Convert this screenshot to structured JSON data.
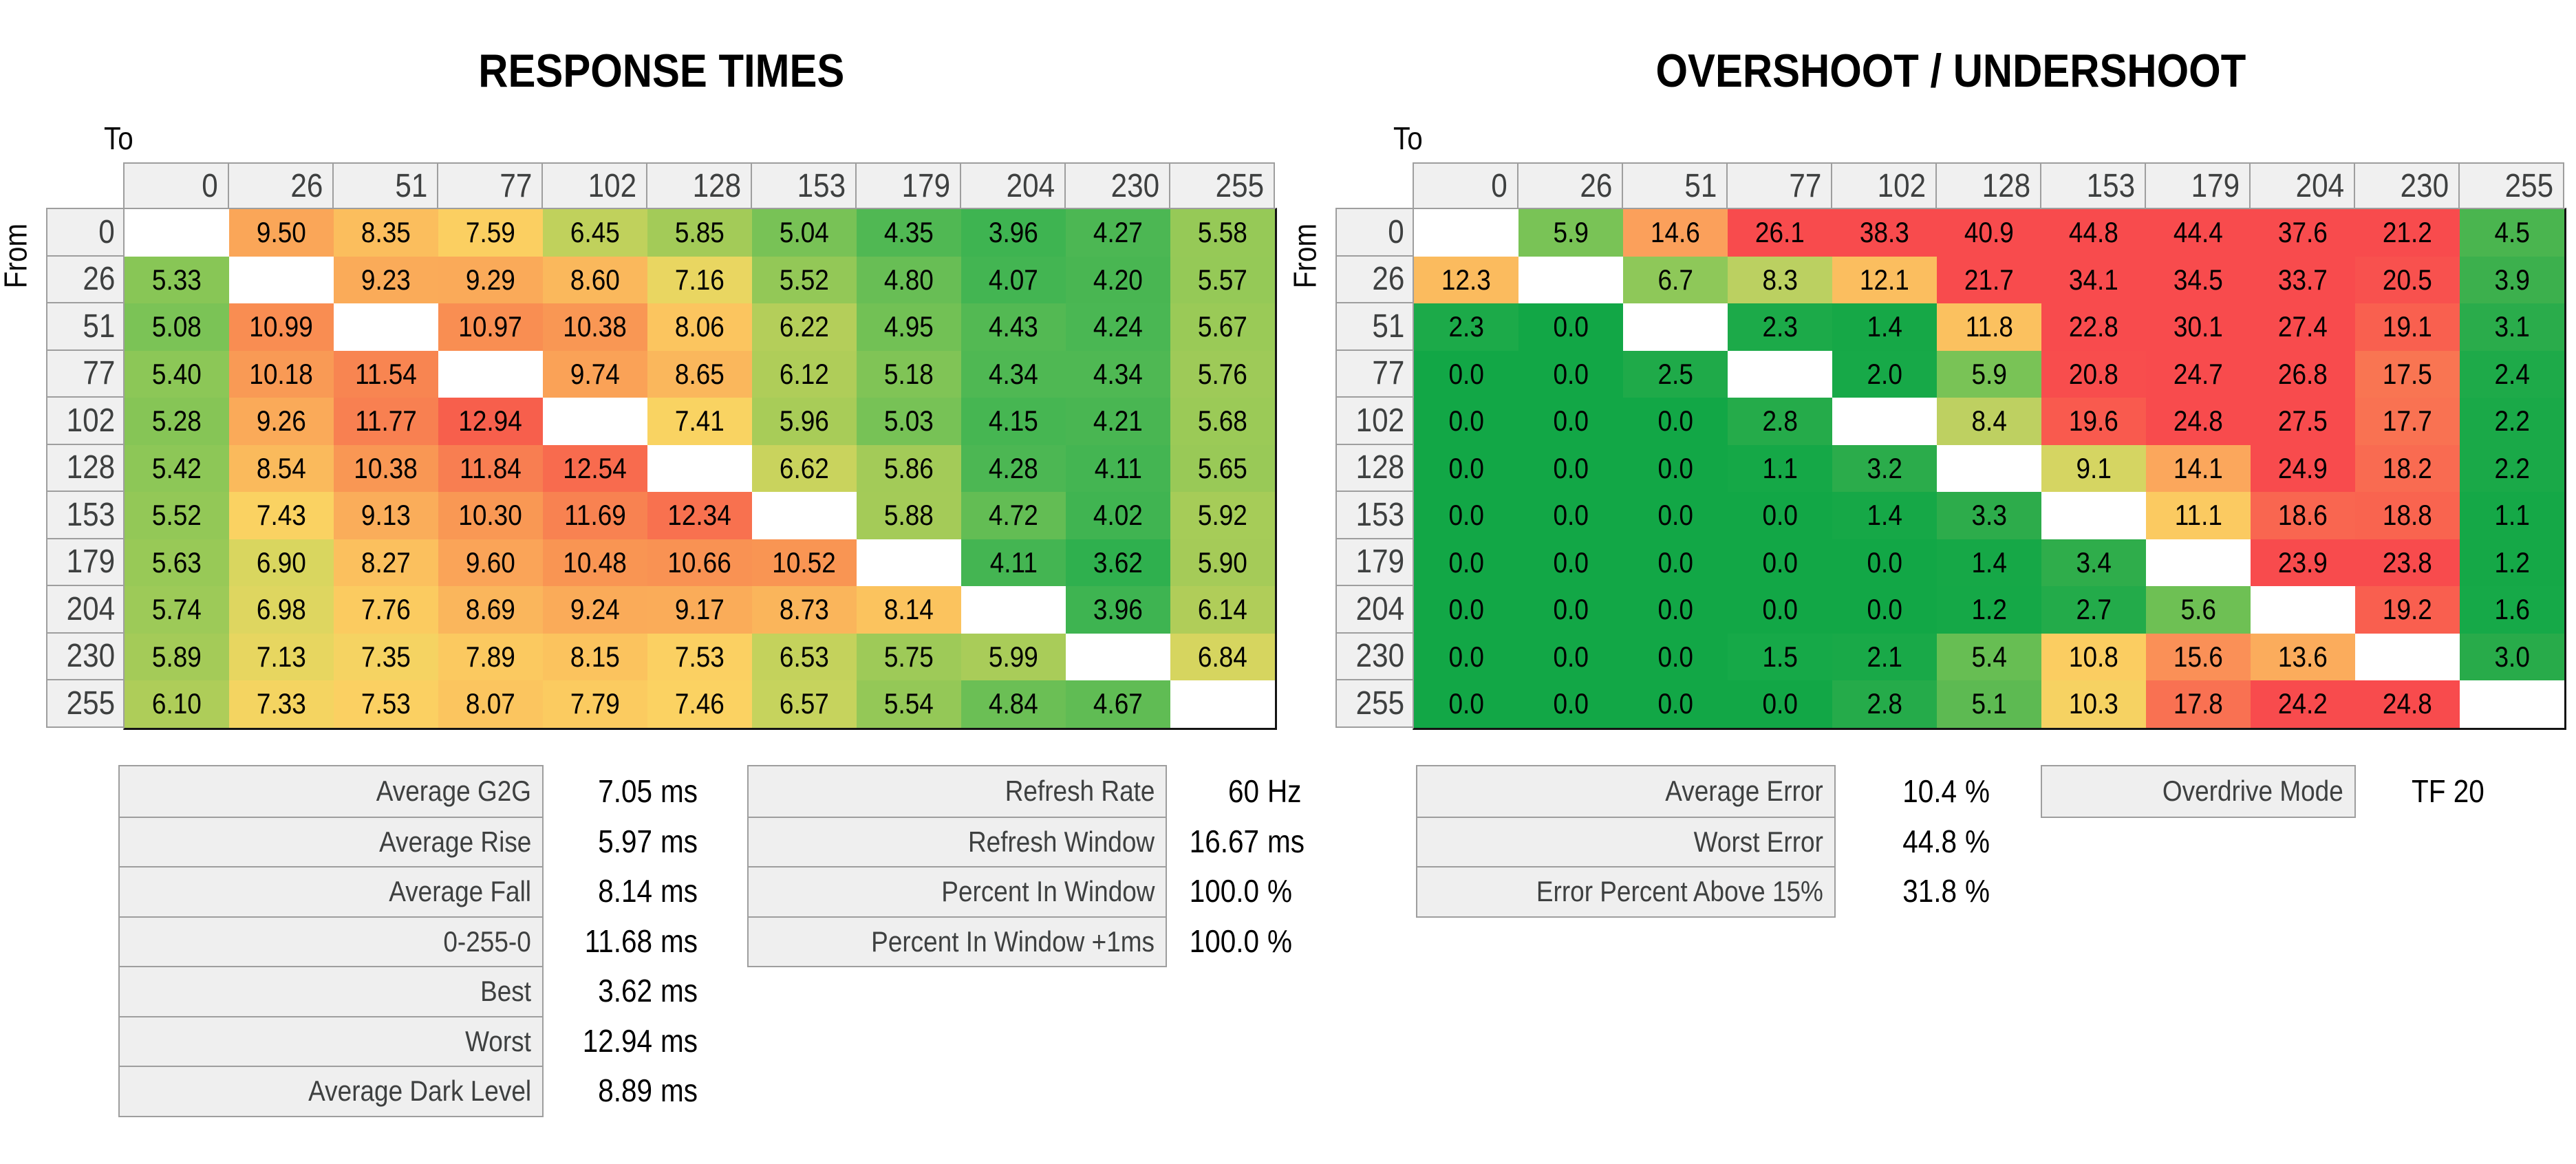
{
  "axis": {
    "to_label": "To",
    "from_label": "From"
  },
  "levels": [
    "0",
    "26",
    "51",
    "77",
    "102",
    "128",
    "153",
    "179",
    "204",
    "230",
    "255"
  ],
  "colors": {
    "header_bg": "#f0f0f0",
    "grid_border": "#9e9e9e",
    "matrix_border_dark": "#141414",
    "header_text": "#3e4040",
    "good_green": "#12a746",
    "warn_yellow": "#fbd162",
    "bad_red": "#f84b4d"
  },
  "chart_data": [
    {
      "type": "heatmap",
      "title": "RESPONSE TIMES",
      "xlabel": "To",
      "ylabel": "From",
      "unit": "ms",
      "x_ticks": [
        "0",
        "26",
        "51",
        "77",
        "102",
        "128",
        "153",
        "179",
        "204",
        "230",
        "255"
      ],
      "y_ticks": [
        "0",
        "26",
        "51",
        "77",
        "102",
        "128",
        "153",
        "179",
        "204",
        "230",
        "255"
      ],
      "values": [
        [
          null,
          "9.50",
          "8.35",
          "7.59",
          "6.45",
          "5.85",
          "5.04",
          "4.35",
          "3.96",
          "4.27",
          "5.58"
        ],
        [
          "5.33",
          null,
          "9.23",
          "9.29",
          "8.60",
          "7.16",
          "5.52",
          "4.80",
          "4.07",
          "4.20",
          "5.57"
        ],
        [
          "5.08",
          "10.99",
          null,
          "10.97",
          "10.38",
          "8.06",
          "6.22",
          "4.95",
          "4.43",
          "4.24",
          "5.67"
        ],
        [
          "5.40",
          "10.18",
          "11.54",
          null,
          "9.74",
          "8.65",
          "6.12",
          "5.18",
          "4.34",
          "4.34",
          "5.76"
        ],
        [
          "5.28",
          "9.26",
          "11.77",
          "12.94",
          null,
          "7.41",
          "5.96",
          "5.03",
          "4.15",
          "4.21",
          "5.68"
        ],
        [
          "5.42",
          "8.54",
          "10.38",
          "11.84",
          "12.54",
          null,
          "6.62",
          "5.86",
          "4.28",
          "4.11",
          "5.65"
        ],
        [
          "5.52",
          "7.43",
          "9.13",
          "10.30",
          "11.69",
          "12.34",
          null,
          "5.88",
          "4.72",
          "4.02",
          "5.92"
        ],
        [
          "5.63",
          "6.90",
          "8.27",
          "9.60",
          "10.48",
          "10.66",
          "10.52",
          null,
          "4.11",
          "3.62",
          "5.90"
        ],
        [
          "5.74",
          "6.98",
          "7.76",
          "8.69",
          "9.24",
          "9.17",
          "8.73",
          "8.14",
          null,
          "3.96",
          "6.14"
        ],
        [
          "5.89",
          "7.13",
          "7.35",
          "7.89",
          "8.15",
          "7.53",
          "6.53",
          "5.75",
          "5.99",
          null,
          "6.84"
        ],
        [
          "6.10",
          "7.33",
          "7.53",
          "8.07",
          "7.79",
          "7.46",
          "6.57",
          "5.54",
          "4.84",
          "4.67",
          null
        ]
      ],
      "color_scale": [
        [
          3.6,
          "#2eb04e"
        ],
        [
          4.1,
          "#44b552"
        ],
        [
          4.6,
          "#5bbb54"
        ],
        [
          5.1,
          "#7cc356"
        ],
        [
          5.6,
          "#97c957"
        ],
        [
          6.1,
          "#aecd59"
        ],
        [
          6.6,
          "#c8d35d"
        ],
        [
          7.05,
          "#e2d760"
        ],
        [
          7.45,
          "#fbd262"
        ],
        [
          8.2,
          "#fbc25e"
        ],
        [
          8.8,
          "#fab35b"
        ],
        [
          9.5,
          "#faa658"
        ],
        [
          10.5,
          "#f99553"
        ],
        [
          11.7,
          "#f88251"
        ],
        [
          12.4,
          "#f86f4f"
        ],
        [
          13.0,
          "#f75d4c"
        ]
      ]
    },
    {
      "type": "heatmap",
      "title": "OVERSHOOT / UNDERSHOOT",
      "xlabel": "To",
      "ylabel": "From",
      "unit": "%",
      "x_ticks": [
        "0",
        "26",
        "51",
        "77",
        "102",
        "128",
        "153",
        "179",
        "204",
        "230",
        "255"
      ],
      "y_ticks": [
        "0",
        "26",
        "51",
        "77",
        "102",
        "128",
        "153",
        "179",
        "204",
        "230",
        "255"
      ],
      "values": [
        [
          null,
          "5.9",
          "14.6",
          "26.1",
          "38.3",
          "40.9",
          "44.8",
          "44.4",
          "37.6",
          "21.2",
          "4.5"
        ],
        [
          "12.3",
          null,
          "6.7",
          "8.3",
          "12.1",
          "21.7",
          "34.1",
          "34.5",
          "33.7",
          "20.5",
          "3.9"
        ],
        [
          "2.3",
          "0.0",
          null,
          "2.3",
          "1.4",
          "11.8",
          "22.8",
          "30.1",
          "27.4",
          "19.1",
          "3.1"
        ],
        [
          "0.0",
          "0.0",
          "2.5",
          null,
          "2.0",
          "5.9",
          "20.8",
          "24.7",
          "26.8",
          "17.5",
          "2.4"
        ],
        [
          "0.0",
          "0.0",
          "0.0",
          "2.8",
          null,
          "8.4",
          "19.6",
          "24.8",
          "27.5",
          "17.7",
          "2.2"
        ],
        [
          "0.0",
          "0.0",
          "0.0",
          "1.1",
          "3.2",
          null,
          "9.1",
          "14.1",
          "24.9",
          "18.2",
          "2.2"
        ],
        [
          "0.0",
          "0.0",
          "0.0",
          "0.0",
          "1.4",
          "3.3",
          null,
          "11.1",
          "18.6",
          "18.8",
          "1.1"
        ],
        [
          "0.0",
          "0.0",
          "0.0",
          "0.0",
          "0.0",
          "1.4",
          "3.4",
          null,
          "23.9",
          "23.8",
          "1.2"
        ],
        [
          "0.0",
          "0.0",
          "0.0",
          "0.0",
          "0.0",
          "1.2",
          "2.7",
          "5.6",
          null,
          "19.2",
          "1.6"
        ],
        [
          "0.0",
          "0.0",
          "0.0",
          "1.5",
          "2.1",
          "5.4",
          "10.8",
          "15.6",
          "13.6",
          null,
          "3.0"
        ],
        [
          "0.0",
          "0.0",
          "0.0",
          "0.0",
          "2.8",
          "5.1",
          "10.3",
          "17.8",
          "24.2",
          "24.8",
          null
        ]
      ],
      "color_scale": [
        [
          0.0,
          "#12a746"
        ],
        [
          2.0,
          "#17a948"
        ],
        [
          3.3,
          "#2dac4b"
        ],
        [
          4.7,
          "#4fb650"
        ],
        [
          6.0,
          "#7cc456"
        ],
        [
          6.9,
          "#93c95a"
        ],
        [
          8.4,
          "#bed061"
        ],
        [
          9.3,
          "#dcd662"
        ],
        [
          10.5,
          "#fbd162"
        ],
        [
          12.4,
          "#fbba5e"
        ],
        [
          14.5,
          "#fba25b"
        ],
        [
          15.8,
          "#fa8d56"
        ],
        [
          17.7,
          "#f97252"
        ],
        [
          19.0,
          "#f9614f"
        ],
        [
          21.0,
          "#f84b4d"
        ]
      ]
    }
  ],
  "stats": {
    "panels": [
      {
        "name": "response-summary",
        "rows": [
          {
            "label": "Average G2G",
            "value": "7.05",
            "unit": "ms"
          },
          {
            "label": "Average Rise",
            "value": "5.97",
            "unit": "ms"
          },
          {
            "label": "Average Fall",
            "value": "8.14",
            "unit": "ms"
          },
          {
            "label": "0-255-0",
            "value": "11.68",
            "unit": "ms"
          },
          {
            "label": "Best",
            "value": "3.62",
            "unit": "ms"
          },
          {
            "label": "Worst",
            "value": "12.94",
            "unit": "ms"
          },
          {
            "label": "Average Dark Level",
            "value": "8.89",
            "unit": "ms"
          }
        ]
      },
      {
        "name": "refresh-summary",
        "rows": [
          {
            "label": "Refresh Rate",
            "value": "60",
            "unit": "Hz"
          },
          {
            "label": "Refresh Window",
            "value": "16.67",
            "unit": "ms"
          },
          {
            "label": "Percent In Window",
            "value": "100.0",
            "unit": "%"
          },
          {
            "label": "Percent In Window +1ms",
            "value": "100.0",
            "unit": "%"
          }
        ]
      },
      {
        "name": "error-summary",
        "rows": [
          {
            "label": "Average Error",
            "value": "10.4",
            "unit": "%"
          },
          {
            "label": "Worst Error",
            "value": "44.8",
            "unit": "%"
          },
          {
            "label": "Error Percent Above 15%",
            "value": "31.8",
            "unit": "%"
          }
        ]
      },
      {
        "name": "overdrive",
        "rows": [
          {
            "label": "Overdrive Mode",
            "value": "TF 20",
            "unit": ""
          }
        ]
      }
    ]
  }
}
